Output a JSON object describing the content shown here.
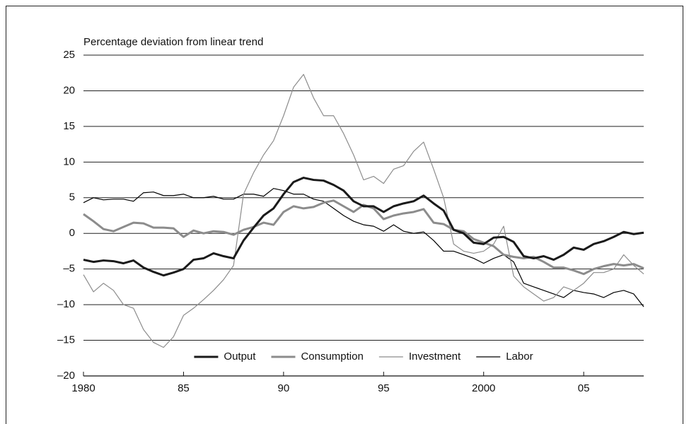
{
  "chart_data": {
    "type": "line",
    "title": "Percentage deviation from linear trend",
    "x": [
      1980,
      1980.5,
      1981,
      1981.5,
      1982,
      1982.5,
      1983,
      1983.5,
      1984,
      1984.5,
      1985,
      1985.5,
      1986,
      1986.5,
      1987,
      1987.5,
      1988,
      1988.5,
      1989,
      1989.5,
      1990,
      1990.5,
      1991,
      1991.5,
      1992,
      1992.5,
      1993,
      1993.5,
      1994,
      1994.5,
      1995,
      1995.5,
      1996,
      1996.5,
      1997,
      1997.5,
      1998,
      1998.5,
      1999,
      1999.5,
      2000,
      2000.5,
      2001,
      2001.5,
      2002,
      2002.5,
      2003,
      2003.5,
      2004,
      2004.5,
      2005,
      2005.5,
      2006,
      2006.5,
      2007,
      2007.5,
      2008
    ],
    "series": [
      {
        "name": "Output",
        "color": "#1a1a1a",
        "width": 3,
        "values": [
          -3.7,
          -4.0,
          -3.8,
          -3.9,
          -4.2,
          -3.8,
          -4.8,
          -5.4,
          -5.9,
          -5.5,
          -5.0,
          -3.7,
          -3.5,
          -2.8,
          -3.2,
          -3.5,
          -1.0,
          0.8,
          2.5,
          3.5,
          5.5,
          7.2,
          7.8,
          7.5,
          7.4,
          6.8,
          6.0,
          4.5,
          3.8,
          3.8,
          3.0,
          3.8,
          4.2,
          4.5,
          5.3,
          4.2,
          3.2,
          0.5,
          0.0,
          -1.3,
          -1.5,
          -0.6,
          -0.5,
          -1.2,
          -3.2,
          -3.5,
          -3.2,
          -3.7,
          -3.0,
          -2.0,
          -2.3,
          -1.5,
          -1.1,
          -0.5,
          0.2,
          -0.1,
          0.1
        ]
      },
      {
        "name": "Consumption",
        "color": "#8c8c8c",
        "width": 3,
        "values": [
          2.7,
          1.7,
          0.6,
          0.3,
          0.9,
          1.5,
          1.4,
          0.8,
          0.8,
          0.7,
          -0.5,
          0.4,
          0.0,
          0.3,
          0.2,
          -0.2,
          0.5,
          0.9,
          1.5,
          1.2,
          3.0,
          3.8,
          3.5,
          3.7,
          4.3,
          4.6,
          3.8,
          3.0,
          4.0,
          3.5,
          2.0,
          2.5,
          2.8,
          3.0,
          3.4,
          1.5,
          1.3,
          0.5,
          0.3,
          -0.8,
          -1.3,
          -1.8,
          -3.0,
          -3.3,
          -3.5,
          -3.3,
          -4.0,
          -4.8,
          -4.8,
          -5.2,
          -5.7,
          -5.0,
          -4.6,
          -4.3,
          -4.5,
          -4.3,
          -4.9
        ]
      },
      {
        "name": "Investment",
        "color": "#8c8c8c",
        "width": 1.2,
        "values": [
          -5.8,
          -8.2,
          -7.0,
          -8.0,
          -10.0,
          -10.5,
          -13.5,
          -15.3,
          -16.0,
          -14.5,
          -11.5,
          -10.5,
          -9.3,
          -8.0,
          -6.5,
          -4.5,
          5.5,
          8.5,
          11.0,
          13.0,
          16.5,
          20.5,
          22.3,
          19.0,
          16.5,
          16.5,
          14.0,
          11.0,
          7.5,
          8.0,
          7.0,
          9.0,
          9.5,
          11.5,
          12.8,
          9.0,
          5.0,
          -1.5,
          -2.5,
          -2.8,
          -2.5,
          -1.5,
          1.0,
          -6.0,
          -7.5,
          -8.5,
          -9.5,
          -9.0,
          -7.5,
          -8.0,
          -7.0,
          -5.5,
          -5.5,
          -5.0,
          -3.0,
          -4.5,
          -5.7
        ]
      },
      {
        "name": "Labor",
        "color": "#000000",
        "width": 1.2,
        "values": [
          4.3,
          5.0,
          4.7,
          4.8,
          4.8,
          4.5,
          5.7,
          5.8,
          5.3,
          5.3,
          5.5,
          5.0,
          5.0,
          5.2,
          4.8,
          4.8,
          5.5,
          5.5,
          5.2,
          6.3,
          6.0,
          5.5,
          5.5,
          4.8,
          4.5,
          3.5,
          2.5,
          1.7,
          1.2,
          1.0,
          0.3,
          1.2,
          0.3,
          0.0,
          0.2,
          -1.0,
          -2.5,
          -2.5,
          -3.0,
          -3.5,
          -4.2,
          -3.5,
          -3.0,
          -4.0,
          -7.0,
          -7.5,
          -8.0,
          -8.5,
          -9.0,
          -8.0,
          -8.3,
          -8.5,
          -9.0,
          -8.3,
          -8.0,
          -8.5,
          -10.3
        ]
      }
    ],
    "xlim": [
      1980,
      2008
    ],
    "xticks": [
      {
        "value": 1980,
        "label": "1980"
      },
      {
        "value": 1985,
        "label": "85"
      },
      {
        "value": 1990,
        "label": "90"
      },
      {
        "value": 1995,
        "label": "95"
      },
      {
        "value": 2000,
        "label": "2000"
      },
      {
        "value": 2005,
        "label": "05"
      }
    ],
    "ylim": [
      -20,
      25
    ],
    "yticks": [
      {
        "value": -20,
        "label": "–20"
      },
      {
        "value": -15,
        "label": "–15"
      },
      {
        "value": -10,
        "label": "–10"
      },
      {
        "value": -5,
        "label": "–5"
      },
      0,
      5,
      10,
      15,
      20,
      25
    ],
    "grid": true,
    "legend": "lower center"
  }
}
